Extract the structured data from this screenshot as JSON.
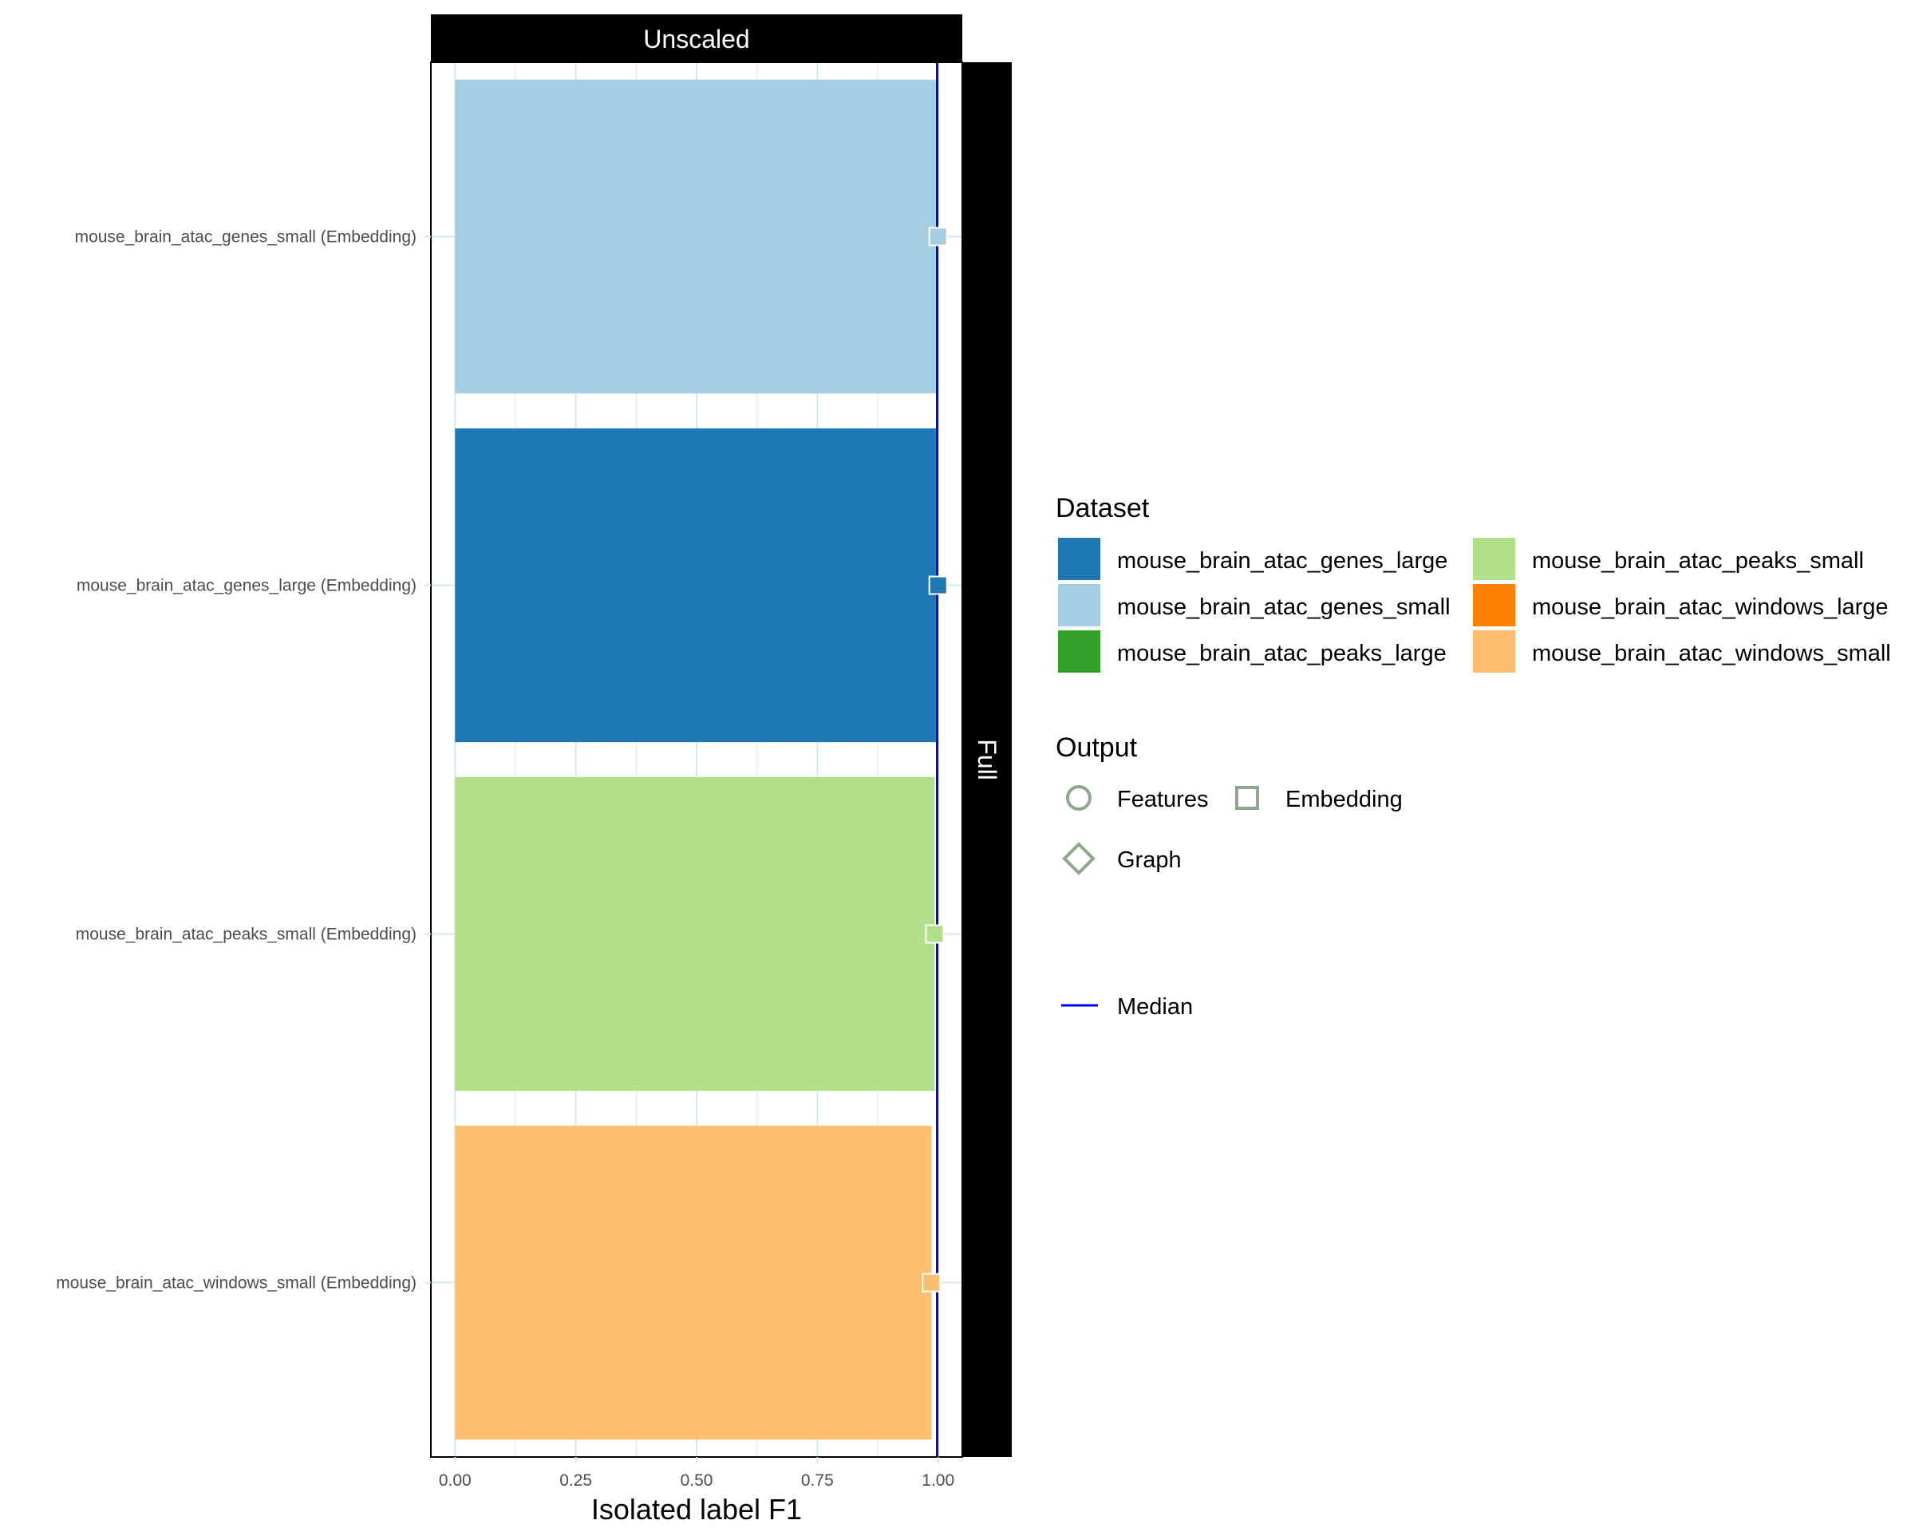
{
  "chart_data": {
    "type": "bar",
    "orientation": "horizontal",
    "facet_top": "Unscaled",
    "facet_right": "Full",
    "xlabel": "Isolated label F1",
    "ylabel": "",
    "xlim": [
      -0.05,
      1.05
    ],
    "xticks": [
      0,
      0.25,
      0.5,
      0.75,
      1
    ],
    "xtick_labels": [
      "0.00",
      "0.25",
      "0.50",
      "0.75",
      "1.00"
    ],
    "grid": true,
    "median": 0.998,
    "categories": [
      "mouse_brain_atac_genes_small (Embedding)",
      "mouse_brain_atac_genes_large (Embedding)",
      "mouse_brain_atac_peaks_small (Embedding)",
      "mouse_brain_atac_windows_small (Embedding)"
    ],
    "bars": [
      {
        "dataset": "mouse_brain_atac_genes_small",
        "output": "Embedding",
        "value": 1.0
      },
      {
        "dataset": "mouse_brain_atac_genes_large",
        "output": "Embedding",
        "value": 1.0
      },
      {
        "dataset": "mouse_brain_atac_peaks_small",
        "output": "Embedding",
        "value": 0.993
      },
      {
        "dataset": "mouse_brain_atac_windows_small",
        "output": "Embedding",
        "value": 0.986
      }
    ],
    "legend_placement": "right",
    "legend_dataset": {
      "title": "Dataset",
      "items": [
        {
          "label": "mouse_brain_atac_genes_large",
          "color": "#1f78b4"
        },
        {
          "label": "mouse_brain_atac_genes_small",
          "color": "#a6cee3"
        },
        {
          "label": "mouse_brain_atac_peaks_large",
          "color": "#33a02c"
        },
        {
          "label": "mouse_brain_atac_peaks_small",
          "color": "#b2df8a"
        },
        {
          "label": "mouse_brain_atac_windows_large",
          "color": "#ff7f00"
        },
        {
          "label": "mouse_brain_atac_windows_small",
          "color": "#fdbf6f"
        }
      ]
    },
    "legend_output": {
      "title": "Output",
      "items": [
        {
          "label": "Features",
          "shape": "circle"
        },
        {
          "label": "Embedding",
          "shape": "square"
        },
        {
          "label": "Graph",
          "shape": "diamond"
        }
      ]
    },
    "legend_median": {
      "label": "Median",
      "color": "#0000ee"
    },
    "colors": {
      "strip_bg": "#000000",
      "strip_text": "#ffffff",
      "grid": "#d6e8ef",
      "axis_text": "#4d4d4d",
      "median_line": "#0000ee",
      "shape_legend": "#8fa68f"
    }
  }
}
